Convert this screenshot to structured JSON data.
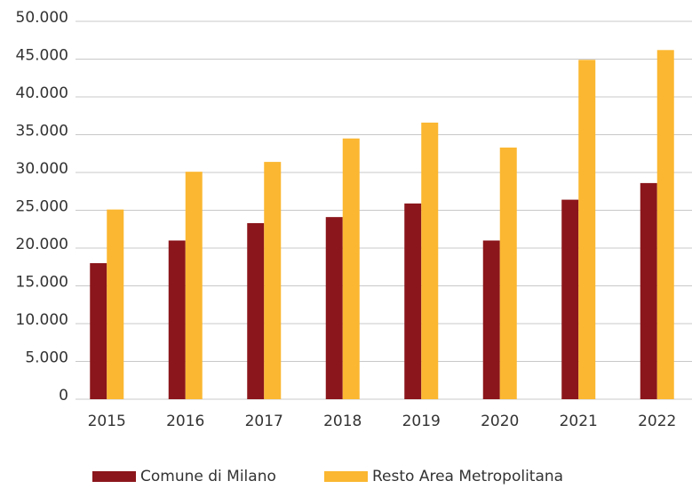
{
  "chart_data": {
    "type": "bar",
    "categories": [
      "2015",
      "2016",
      "2017",
      "2018",
      "2019",
      "2020",
      "2021",
      "2022"
    ],
    "series": [
      {
        "name": "Comune di Milano",
        "color": "#8b161b",
        "values": [
          18000,
          21000,
          23300,
          24100,
          25900,
          21000,
          26400,
          28600
        ]
      },
      {
        "name": "Resto Area Metropolitana",
        "color": "#fbb731",
        "values": [
          25100,
          30100,
          31400,
          34500,
          36600,
          33300,
          44900,
          46200
        ]
      }
    ],
    "ylim": [
      0,
      50000
    ],
    "yticks": [
      0,
      {
        "value": 5000,
        "label": "5.000"
      },
      {
        "value": 10000,
        "label": "10.000"
      },
      {
        "value": 15000,
        "label": "15.000"
      },
      {
        "value": 20000,
        "label": "20.000"
      },
      {
        "value": 25000,
        "label": "25.000"
      },
      {
        "value": 30000,
        "label": "30.000"
      },
      {
        "value": 35000,
        "label": "35.000"
      },
      {
        "value": 40000,
        "label": "40.000"
      },
      {
        "value": 45000,
        "label": "45.000"
      },
      {
        "value": 50000,
        "label": "50.000"
      }
    ],
    "grid": true
  }
}
